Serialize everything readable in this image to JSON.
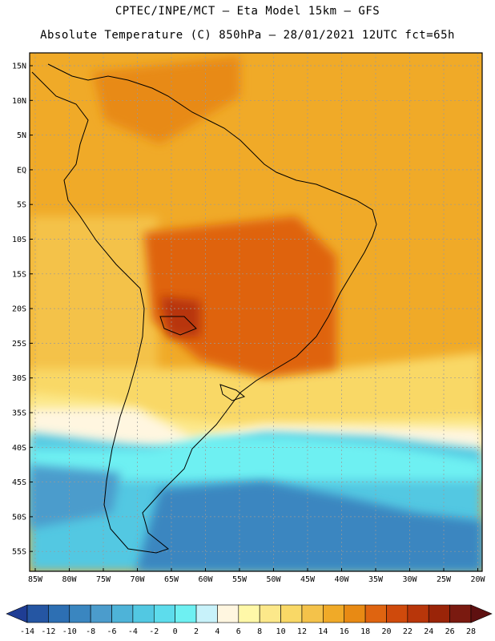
{
  "header": {
    "line1": "CPTEC/INPE/MCT —  Eta Model 15km — GFS",
    "line2": "Absolute Temperature (C) 850hPa — 28/01/2021 12UTC fct=65h"
  },
  "map": {
    "lat_labels": [
      "15N",
      "10N",
      "5N",
      "EQ",
      "5S",
      "10S",
      "15S",
      "20S",
      "25S",
      "30S",
      "35S",
      "40S",
      "45S",
      "50S",
      "55S"
    ],
    "lon_labels": [
      "85W",
      "80W",
      "75W",
      "70W",
      "65W",
      "60W",
      "55W",
      "50W",
      "45W",
      "40W",
      "35W",
      "30W",
      "25W",
      "20W"
    ]
  },
  "colorbar": {
    "labels": [
      "-14",
      "-12",
      "-10",
      "-8",
      "-6",
      "-4",
      "-2",
      "0",
      "2",
      "4",
      "6",
      "8",
      "10",
      "12",
      "14",
      "16",
      "18",
      "20",
      "22",
      "24",
      "26",
      "28"
    ],
    "colors": [
      "#1f3d94",
      "#2556a3",
      "#2d6fb3",
      "#3a86c0",
      "#4b9ccc",
      "#4eb3d8",
      "#52c8e2",
      "#5ddcec",
      "#6ef0f2",
      "#c8f2fa",
      "#fff6e0",
      "#fff8a8",
      "#fce88a",
      "#f9d866",
      "#f4c24a",
      "#f0aa28",
      "#e88a14",
      "#df6410",
      "#cf4a0c",
      "#b8360a",
      "#9a2408",
      "#7a1a10",
      "#5e1010"
    ]
  }
}
